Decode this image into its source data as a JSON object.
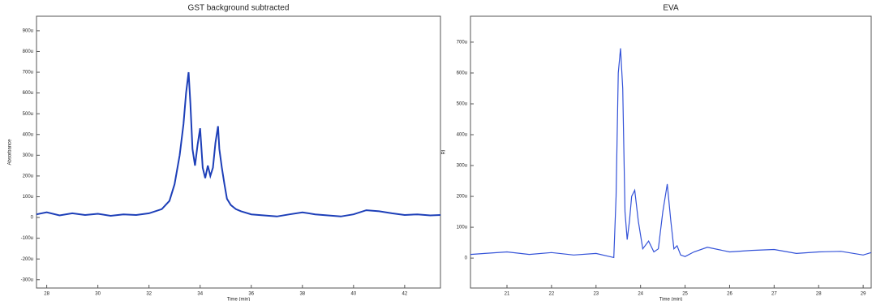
{
  "chart_data": [
    {
      "type": "line",
      "title": "GST background subtracted",
      "x_label": "Time (min)",
      "y_label": "Absorbance",
      "xlim": [
        27.6,
        43.4
      ],
      "ylim": [
        -340,
        970
      ],
      "xticks": [
        28,
        30,
        32,
        34,
        36,
        38,
        40,
        42
      ],
      "yticks": [
        {
          "value": -300,
          "label": "-300u"
        },
        {
          "value": -200,
          "label": "-200u"
        },
        {
          "value": -100,
          "label": "-100u"
        },
        0,
        {
          "value": 100,
          "label": "100u"
        },
        {
          "value": 200,
          "label": "200u"
        },
        {
          "value": 300,
          "label": "300u"
        },
        {
          "value": 400,
          "label": "400u"
        },
        {
          "value": 500,
          "label": "500u"
        },
        {
          "value": 600,
          "label": "600u"
        },
        {
          "value": 700,
          "label": "700u"
        },
        {
          "value": 800,
          "label": "800u"
        },
        {
          "value": 900,
          "label": "900u"
        }
      ],
      "series": [
        {
          "name": "GST",
          "color": "#1d3fb8",
          "x": [
            27.6,
            28,
            28.5,
            29,
            29.5,
            30,
            30.5,
            31,
            31.5,
            32,
            32.5,
            32.8,
            33.0,
            33.2,
            33.35,
            33.45,
            33.55,
            33.62,
            33.7,
            33.8,
            33.9,
            34.0,
            34.1,
            34.2,
            34.3,
            34.4,
            34.5,
            34.6,
            34.7,
            34.75,
            34.85,
            34.95,
            35.05,
            35.2,
            35.4,
            35.6,
            36,
            36.5,
            37,
            37.5,
            38,
            38.5,
            39,
            39.5,
            40,
            40.5,
            41,
            41.5,
            42,
            42.5,
            43,
            43.4
          ],
          "values": [
            15,
            25,
            10,
            20,
            12,
            18,
            8,
            15,
            12,
            20,
            40,
            80,
            160,
            300,
            450,
            600,
            700,
            550,
            330,
            250,
            350,
            430,
            240,
            190,
            250,
            200,
            240,
            360,
            440,
            330,
            240,
            160,
            90,
            60,
            40,
            30,
            15,
            10,
            5,
            15,
            25,
            15,
            10,
            5,
            15,
            35,
            30,
            20,
            12,
            15,
            10,
            12
          ]
        }
      ]
    },
    {
      "type": "line",
      "title": "EVA",
      "x_label": "Time (min)",
      "y_label": "RI",
      "xlim": [
        20.18,
        29.18
      ],
      "ylim": [
        -97,
        784
      ],
      "xticks": [
        21,
        22,
        23,
        24,
        25,
        26,
        27,
        28,
        29
      ],
      "yticks": [
        0,
        {
          "value": 100,
          "label": "100u"
        },
        {
          "value": 200,
          "label": "200u"
        },
        {
          "value": 300,
          "label": "300u"
        },
        {
          "value": 400,
          "label": "400u"
        },
        {
          "value": 500,
          "label": "500u"
        },
        {
          "value": 600,
          "label": "600u"
        },
        {
          "value": 700,
          "label": "700u"
        }
      ],
      "series": [
        {
          "name": "EVA",
          "color": "#3352d8",
          "x": [
            20.18,
            20.5,
            21,
            21.5,
            22,
            22.5,
            23,
            23.3,
            23.4,
            23.45,
            23.5,
            23.55,
            23.6,
            23.65,
            23.7,
            23.75,
            23.8,
            23.87,
            23.95,
            24.05,
            24.18,
            24.3,
            24.4,
            24.5,
            24.6,
            24.68,
            24.75,
            24.82,
            24.9,
            25.0,
            25.2,
            25.5,
            26,
            26.5,
            27,
            27.5,
            28,
            28.5,
            29,
            29.18
          ],
          "values": [
            12,
            15,
            20,
            12,
            18,
            10,
            15,
            5,
            2,
            200,
            600,
            680,
            550,
            150,
            60,
            120,
            200,
            220,
            120,
            30,
            55,
            20,
            30,
            150,
            240,
            120,
            30,
            40,
            10,
            5,
            20,
            35,
            20,
            25,
            28,
            15,
            20,
            22,
            10,
            18
          ]
        }
      ]
    }
  ]
}
